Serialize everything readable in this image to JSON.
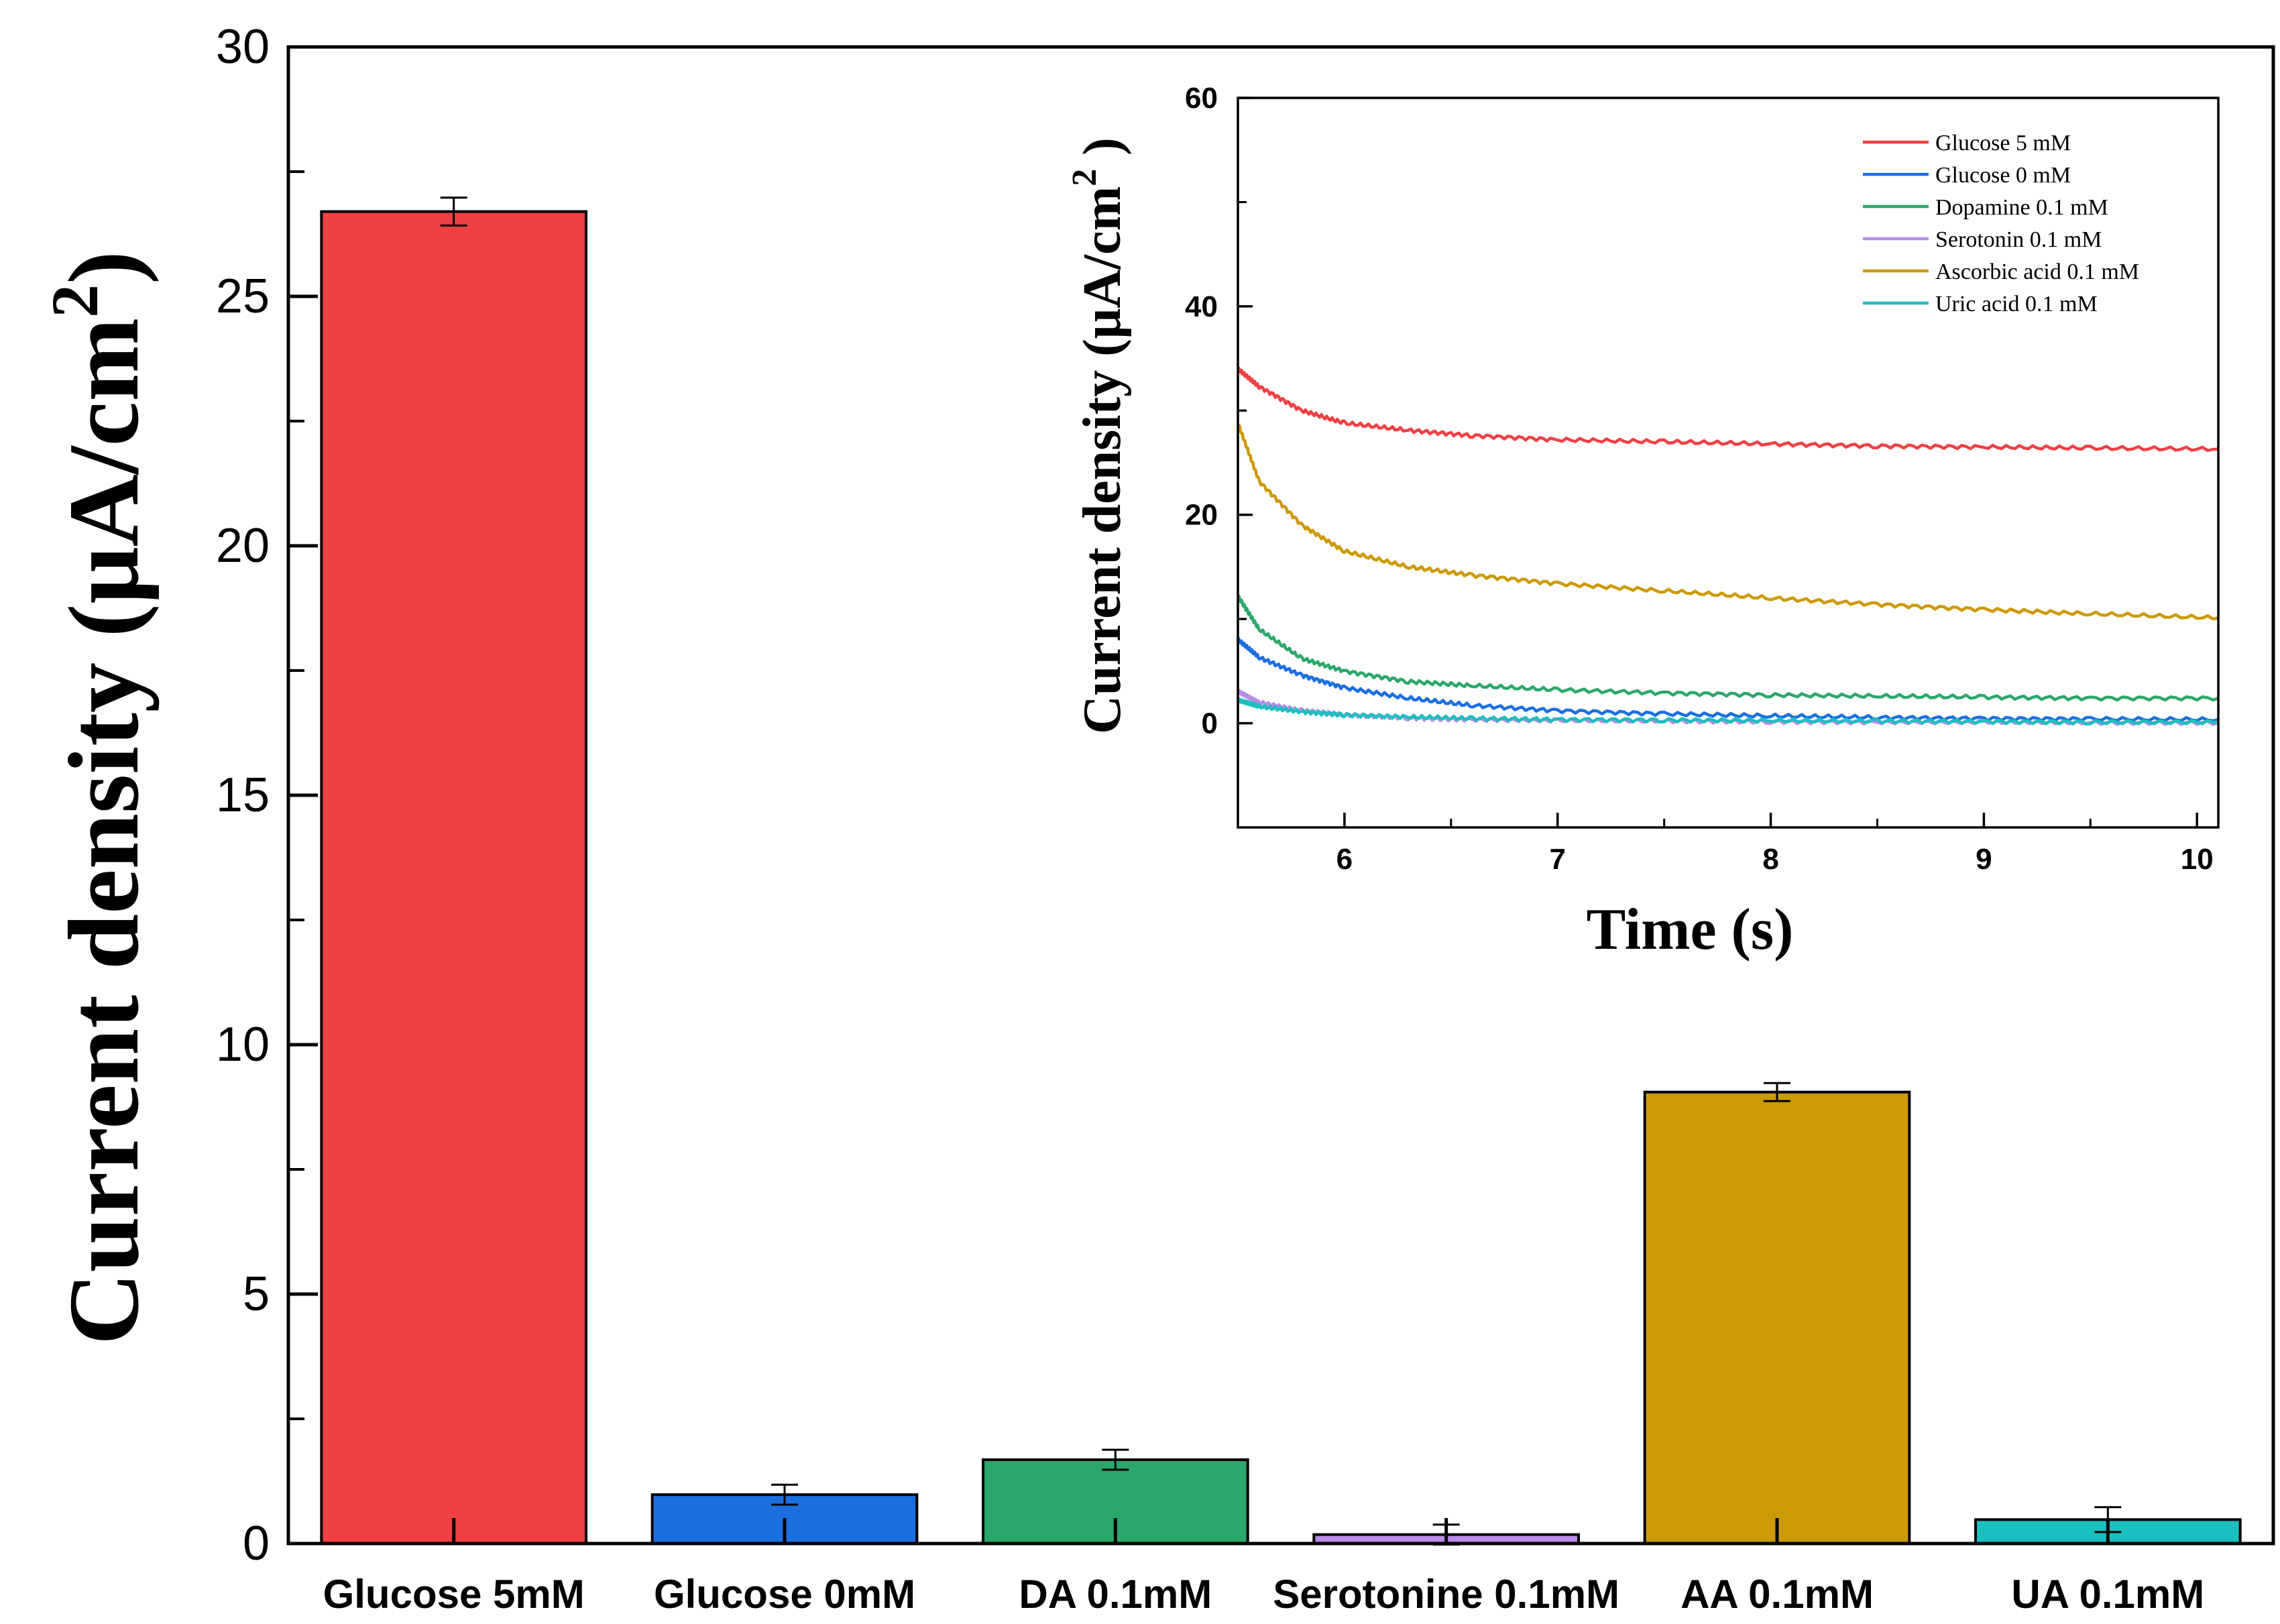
{
  "chart_data": [
    {
      "type": "bar",
      "title": "",
      "xlabel": "",
      "ylabel": "Current density (μA/cm",
      "ylabel_sup": "2",
      "ylabel_close": ")",
      "ylim": [
        0,
        30
      ],
      "yticks": [
        0,
        5,
        10,
        15,
        20,
        25,
        30
      ],
      "ytick_labels": [
        "0",
        "5",
        "10",
        "15",
        "20",
        "25",
        "30"
      ],
      "categories": [
        "Glucose 5mM",
        "Glucose 0mM",
        "DA 0.1mM",
        "Serotonine 0.1mM",
        "AA 0.1mM",
        "UA 0.1mM"
      ],
      "values": [
        26.7,
        0.98,
        1.68,
        0.18,
        9.05,
        0.48
      ],
      "errors": [
        0.28,
        0.2,
        0.2,
        0.2,
        0.18,
        0.25
      ],
      "colors": [
        "#ef4043",
        "#1b6fe0",
        "#2ca76a",
        "#b88be6",
        "#cc9a06",
        "#1cbfbf"
      ]
    },
    {
      "type": "line",
      "title": "",
      "xlabel": "Time (s)",
      "ylabel": "Current density (μA/cm",
      "ylabel_sup": "2",
      "ylabel_close": " )",
      "xlim": [
        5.5,
        10.1
      ],
      "ylim": [
        -10,
        60
      ],
      "xticks": [
        6,
        7,
        8,
        9,
        10
      ],
      "xtick_labels": [
        "6",
        "7",
        "8",
        "9",
        "10"
      ],
      "yticks": [
        0,
        20,
        40,
        60
      ],
      "ytick_labels": [
        "0",
        "20",
        "40",
        "60"
      ],
      "legend_position": "top-right",
      "series": [
        {
          "name": "Glucose 5 mM",
          "color": "#ef4043",
          "x": [
            5.5,
            5.6,
            5.8,
            6.0,
            6.3,
            6.6,
            7.0,
            7.5,
            8.0,
            8.5,
            9.0,
            9.5,
            10.1
          ],
          "y": [
            34.0,
            32.3,
            30.0,
            28.8,
            28.1,
            27.6,
            27.2,
            27.0,
            26.8,
            26.6,
            26.5,
            26.4,
            26.3
          ]
        },
        {
          "name": "Glucose 0 mM",
          "color": "#1b6fe0",
          "x": [
            5.5,
            5.6,
            5.8,
            6.0,
            6.3,
            6.6,
            7.0,
            7.5,
            8.0,
            8.5,
            9.0,
            9.5,
            10.1
          ],
          "y": [
            8.0,
            6.3,
            4.6,
            3.4,
            2.4,
            1.7,
            1.2,
            0.9,
            0.7,
            0.55,
            0.45,
            0.4,
            0.35
          ]
        },
        {
          "name": "Dopamine 0.1 mM",
          "color": "#2ca76a",
          "x": [
            5.5,
            5.6,
            5.8,
            6.0,
            6.3,
            6.6,
            7.0,
            7.5,
            8.0,
            8.5,
            9.0,
            9.5,
            10.1
          ],
          "y": [
            12.2,
            9.0,
            6.2,
            5.0,
            4.0,
            3.6,
            3.2,
            2.9,
            2.7,
            2.6,
            2.5,
            2.4,
            2.4
          ]
        },
        {
          "name": "Serotonin 0.1 mM",
          "color": "#b88be6",
          "x": [
            5.5,
            5.6,
            5.8,
            6.0,
            6.3,
            6.6,
            7.0,
            7.5,
            8.0,
            8.5,
            9.0,
            9.5,
            10.1
          ],
          "y": [
            3.1,
            2.0,
            1.2,
            0.8,
            0.5,
            0.35,
            0.25,
            0.2,
            0.15,
            0.1,
            0.1,
            0.05,
            0.05
          ]
        },
        {
          "name": "Ascorbic acid 0.1 mM",
          "color": "#cc9a06",
          "x": [
            5.5,
            5.6,
            5.8,
            6.0,
            6.3,
            6.6,
            7.0,
            7.5,
            8.0,
            8.5,
            9.0,
            9.5,
            10.1
          ],
          "y": [
            28.8,
            23.2,
            19.0,
            16.5,
            15.0,
            14.2,
            13.4,
            12.7,
            12.0,
            11.4,
            10.9,
            10.5,
            10.1
          ]
        },
        {
          "name": "Uric acid 0.1 mM",
          "color": "#1cbfbf",
          "x": [
            5.5,
            5.6,
            5.8,
            6.0,
            6.3,
            6.6,
            7.0,
            7.5,
            8.0,
            8.5,
            9.0,
            9.5,
            10.1
          ],
          "y": [
            2.2,
            1.6,
            1.1,
            0.8,
            0.6,
            0.45,
            0.35,
            0.3,
            0.25,
            0.2,
            0.15,
            0.1,
            0.1
          ]
        }
      ]
    }
  ]
}
